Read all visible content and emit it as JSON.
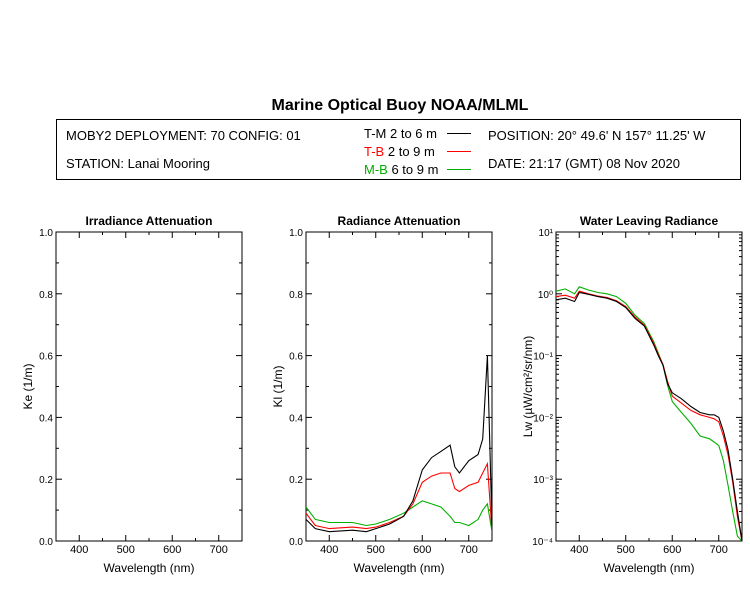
{
  "title": "Marine Optical Buoy NOAA/MLML",
  "info": {
    "deployment": "MOBY2 DEPLOYMENT: 70 CONFIG: 01",
    "station": "STATION: Lanai Mooring",
    "position": "POSITION: 20° 49.6' N   157° 11.25' W",
    "date": "DATE: 21:17 (GMT) 08 Nov 2020"
  },
  "legend": [
    {
      "code": "T-M",
      "range": "2 to 6  m",
      "color": "#000000"
    },
    {
      "code": "T-B",
      "range": "2 to 9  m",
      "color": "#ff0000"
    },
    {
      "code": "M-B",
      "range": "6 to 9  m",
      "color": "#00b000"
    }
  ],
  "chart_data": [
    {
      "type": "line",
      "title": "Irradiance Attenuation",
      "xlabel": "Wavelength (nm)",
      "ylabel": "Ke  (1/m)",
      "xlim": [
        350,
        750
      ],
      "ylim": [
        0,
        1.0
      ],
      "xticks": [
        "400",
        "500",
        "600",
        "700"
      ],
      "yticks": [
        "0.0",
        "0.2",
        "0.4",
        "0.6",
        "0.8",
        "1.0"
      ],
      "series": []
    },
    {
      "type": "line",
      "title": "Radiance Attenuation",
      "xlabel": "Wavelength (nm)",
      "ylabel": "Kl  (1/m)",
      "xlim": [
        350,
        750
      ],
      "ylim": [
        0,
        1.0
      ],
      "xticks": [
        "400",
        "500",
        "600",
        "700"
      ],
      "yticks": [
        "0.0",
        "0.2",
        "0.4",
        "0.6",
        "0.8",
        "1.0"
      ],
      "series": [
        {
          "color": "#000000",
          "x": [
            350,
            370,
            400,
            450,
            480,
            500,
            530,
            560,
            580,
            600,
            620,
            640,
            660,
            670,
            680,
            700,
            720,
            730,
            740,
            750
          ],
          "y": [
            0.07,
            0.04,
            0.03,
            0.035,
            0.03,
            0.04,
            0.055,
            0.08,
            0.13,
            0.23,
            0.27,
            0.29,
            0.31,
            0.24,
            0.22,
            0.26,
            0.28,
            0.33,
            0.6,
            0.05
          ]
        },
        {
          "color": "#ff0000",
          "x": [
            350,
            370,
            400,
            450,
            480,
            500,
            530,
            560,
            580,
            600,
            620,
            640,
            660,
            670,
            680,
            700,
            720,
            730,
            740,
            750
          ],
          "y": [
            0.09,
            0.05,
            0.04,
            0.045,
            0.04,
            0.045,
            0.06,
            0.08,
            0.12,
            0.19,
            0.21,
            0.22,
            0.22,
            0.17,
            0.16,
            0.18,
            0.19,
            0.22,
            0.25,
            0.03
          ]
        },
        {
          "color": "#00b000",
          "x": [
            350,
            370,
            400,
            450,
            480,
            500,
            530,
            560,
            580,
            600,
            620,
            640,
            660,
            670,
            680,
            700,
            720,
            730,
            740,
            750
          ],
          "y": [
            0.11,
            0.07,
            0.06,
            0.06,
            0.05,
            0.055,
            0.07,
            0.09,
            0.11,
            0.13,
            0.12,
            0.11,
            0.08,
            0.06,
            0.06,
            0.05,
            0.07,
            0.1,
            0.12,
            0.03
          ]
        }
      ]
    },
    {
      "type": "line",
      "title": "Water Leaving Radiance",
      "xlabel": "Wavelength (nm)",
      "ylabel": "Lw  (µW/cm²/sr/nm)",
      "xlim": [
        350,
        750
      ],
      "ylim": [
        0.0001,
        10
      ],
      "yscale": "log",
      "xticks": [
        "400",
        "500",
        "600",
        "700"
      ],
      "yticks": [
        "10⁻⁴",
        "10⁻³",
        "10⁻²",
        "10⁻¹",
        "10⁰",
        "10¹"
      ],
      "series": [
        {
          "color": "#000000",
          "x": [
            350,
            370,
            390,
            400,
            420,
            440,
            460,
            480,
            500,
            520,
            540,
            560,
            570,
            580,
            590,
            600,
            620,
            640,
            660,
            680,
            690,
            700,
            710,
            720,
            730,
            740,
            750
          ],
          "y": [
            0.8,
            0.85,
            0.75,
            1.05,
            0.98,
            0.9,
            0.85,
            0.75,
            0.6,
            0.4,
            0.3,
            0.15,
            0.1,
            0.07,
            0.035,
            0.025,
            0.02,
            0.015,
            0.012,
            0.011,
            0.011,
            0.01,
            0.006,
            0.003,
            0.001,
            0.0003,
            0.0001
          ]
        },
        {
          "color": "#ff0000",
          "x": [
            350,
            370,
            390,
            400,
            420,
            440,
            460,
            480,
            500,
            520,
            540,
            560,
            570,
            580,
            590,
            600,
            620,
            640,
            660,
            680,
            690,
            700,
            710,
            720,
            730,
            740,
            750
          ],
          "y": [
            0.9,
            0.95,
            0.85,
            1.1,
            1.0,
            0.92,
            0.87,
            0.77,
            0.62,
            0.42,
            0.31,
            0.16,
            0.105,
            0.072,
            0.038,
            0.022,
            0.017,
            0.013,
            0.011,
            0.01,
            0.0095,
            0.0085,
            0.005,
            0.0025,
            0.0009,
            0.00025,
            0.0001
          ]
        },
        {
          "color": "#00b000",
          "x": [
            350,
            370,
            390,
            400,
            420,
            440,
            460,
            480,
            500,
            520,
            540,
            560,
            570,
            580,
            590,
            600,
            620,
            640,
            660,
            680,
            690,
            700,
            710,
            720,
            730,
            740,
            750
          ],
          "y": [
            1.1,
            1.2,
            1.0,
            1.3,
            1.15,
            1.05,
            1.0,
            0.9,
            0.7,
            0.45,
            0.33,
            0.17,
            0.11,
            0.07,
            0.033,
            0.018,
            0.012,
            0.008,
            0.005,
            0.0045,
            0.004,
            0.0035,
            0.002,
            0.0008,
            0.0003,
            0.00012,
            0.0001
          ]
        }
      ]
    }
  ]
}
